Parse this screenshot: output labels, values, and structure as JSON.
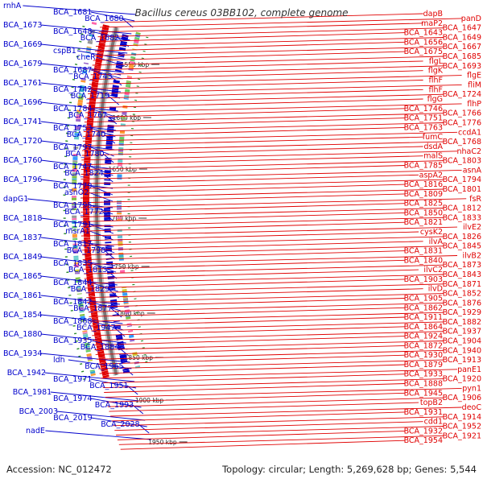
{
  "title": "Bacillus cereus 03BB102, complete genome",
  "footer": {
    "accession": "Accession: NC_012472",
    "summary": "Topology: circular; Length: 5,269,628 bp; Genes: 5,544"
  },
  "colors": {
    "forward": "#e00000",
    "reverse": "#0000cc",
    "backbone_dark": "#777777",
    "backbone_light": "#c8c8c8",
    "tick": "#2a8a2a"
  },
  "scale_ticks": [
    "1550 kbp",
    "1600 kbp",
    "1650 kbp",
    "1700 kbp",
    "1750 kbp",
    "1800 kbp",
    "1850 kbp",
    "1900 kbp",
    "1950 kbp"
  ],
  "reverse_labels": [
    "rnhA",
    "BCA_1681",
    "BCA_1680",
    "BCA_1673",
    "BCA_1648",
    "BCA_1682",
    "BCA_1669",
    "cspB1",
    "cheR",
    "BCA_1679",
    "BCA_1687",
    "BCA_1743",
    "BCA_1761",
    "BCA_1742",
    "BCA_1719",
    "BCA_1696",
    "BCA_1784",
    "BCA_1767",
    "BCA_1741",
    "BCA_1753",
    "BCA_1740",
    "BCA_1720",
    "BCA_1797",
    "BCA_1780",
    "BCA_1760",
    "BCA_1747",
    "BCA_1824",
    "BCA_1796",
    "BCA_1779",
    "asnO2",
    "dapG1",
    "BCA_1795",
    "BCA_1772",
    "BCA_1818",
    "BCA_1791",
    "msrA1",
    "BCA_1837",
    "BCA_1817",
    "BCA_1798",
    "BCA_1849",
    "BCA_1835",
    "BCA_1813",
    "BCA_1865",
    "BCA_1844",
    "BCA_1829",
    "BCA_1861",
    "BCA_1842",
    "BCA_1877",
    "BCA_1854",
    "BCA_1868",
    "BCA_1947",
    "BCA_1880",
    "BCA_1935",
    "BCA_1884",
    "BCA_1934",
    "ldh",
    "BCA_1965",
    "BCA_1942",
    "BCA_1971",
    "BCA_1951",
    "BCA_1981",
    "BCA_1974",
    "BCA_1993",
    "BCA_2003",
    "BCA_2019",
    "BCA_2028",
    "nadE"
  ],
  "forward_labels": [
    "dapB",
    "panD",
    "maP2",
    "BCA_1647",
    "BCA_1643",
    "BCA_1649",
    "BCA_1656",
    "BCA_1667",
    "BCA_1675",
    "BCA_1685",
    "flgL",
    "BCA_1693",
    "flgK",
    "flgE",
    "flhF",
    "fliM",
    "flhF",
    "BCA_1724",
    "flgG",
    "flhP",
    "BCA_1746",
    "BCA_1766",
    "BCA_1751",
    "BCA_1776",
    "BCA_1763",
    "ccdA1",
    "fumC",
    "BCA_1768",
    "dsdA",
    "nhaC2",
    "malS",
    "BCA_1803",
    "BCA_1785",
    "asnA",
    "aspA2",
    "BCA_1794",
    "BCA_1816",
    "BCA_1801",
    "BCA_1809",
    "fsR",
    "BCA_1825",
    "BCA_1812",
    "BCA_1850",
    "BCA_1833",
    "BCA_1821",
    "ilvE2",
    "cysK2",
    "BCA_1826",
    "ilvA",
    "BCA_1845",
    "BCA_1831",
    "ilvB2",
    "BCA_1840",
    "BCA_1873",
    "ilvC2",
    "BCA_1843",
    "BCA_1903",
    "BCA_1871",
    "ilvD",
    "BCA_1852",
    "BCA_1905",
    "BCA_1876",
    "BCA_1862",
    "BCA_1929",
    "BCA_1911",
    "BCA_1882",
    "BCA_1864",
    "BCA_1937",
    "BCA_1924",
    "BCA_1904",
    "BCA_1872",
    "BCA_1940",
    "BCA_1930",
    "BCA_1913",
    "BCA_1879",
    "panE1",
    "BCA_1933",
    "BCA_1920",
    "BCA_1888",
    "pyn1",
    "BCA_1945",
    "BCA_1906",
    "topB2",
    "deoC",
    "BCA_1931",
    "BCA_1914",
    "cdd1",
    "BCA_1952",
    "BCA_1932",
    "BCA_1921",
    "BCA_1954"
  ]
}
